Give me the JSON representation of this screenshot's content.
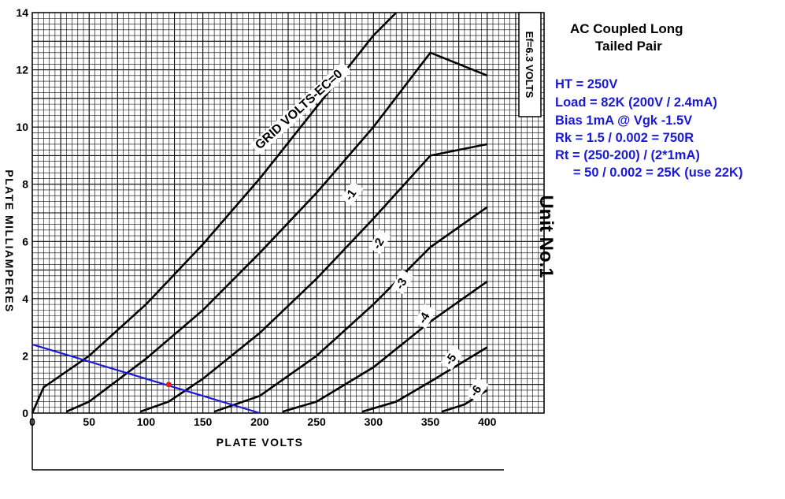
{
  "chart_data": {
    "type": "line",
    "xlabel": "PLATE VOLTS",
    "ylabel": "PLATE MILLIAMPERES",
    "heater_note": "Ef=6.3 VOLTS",
    "xlim": [
      0,
      450
    ],
    "ylim": [
      0,
      14
    ],
    "x_ticks": [
      "0",
      "50",
      "100",
      "150",
      "200",
      "250",
      "300",
      "350",
      "400"
    ],
    "y_ticks": [
      "0",
      "2",
      "4",
      "6",
      "8",
      "10",
      "12",
      "14"
    ],
    "grid": true,
    "series": [
      {
        "name": "GRID VOLTS-EC=0",
        "points": [
          [
            0,
            0
          ],
          [
            10,
            0.9
          ],
          [
            50,
            2.0
          ],
          [
            100,
            3.8
          ],
          [
            150,
            5.9
          ],
          [
            200,
            8.2
          ],
          [
            250,
            10.7
          ],
          [
            300,
            13.2
          ],
          [
            320,
            14.0
          ]
        ]
      },
      {
        "name": "-1",
        "points": [
          [
            30,
            0.05
          ],
          [
            50,
            0.4
          ],
          [
            100,
            1.9
          ],
          [
            150,
            3.6
          ],
          [
            200,
            5.6
          ],
          [
            250,
            7.7
          ],
          [
            300,
            10.0
          ],
          [
            350,
            12.6
          ],
          [
            400,
            11.8
          ]
        ]
      },
      {
        "name": "-2",
        "points": [
          [
            95,
            0.05
          ],
          [
            120,
            0.4
          ],
          [
            150,
            1.2
          ],
          [
            200,
            2.8
          ],
          [
            250,
            4.7
          ],
          [
            300,
            6.8
          ],
          [
            350,
            9.0
          ],
          [
            400,
            9.4
          ]
        ]
      },
      {
        "name": "-3",
        "points": [
          [
            160,
            0.05
          ],
          [
            200,
            0.6
          ],
          [
            250,
            2.0
          ],
          [
            300,
            3.8
          ],
          [
            350,
            5.8
          ],
          [
            400,
            7.2
          ]
        ]
      },
      {
        "name": "-4",
        "points": [
          [
            220,
            0.05
          ],
          [
            250,
            0.4
          ],
          [
            300,
            1.6
          ],
          [
            350,
            3.2
          ],
          [
            400,
            4.6
          ]
        ]
      },
      {
        "name": "-5",
        "points": [
          [
            290,
            0.05
          ],
          [
            320,
            0.4
          ],
          [
            350,
            1.1
          ],
          [
            400,
            2.3
          ]
        ]
      },
      {
        "name": "-6",
        "points": [
          [
            360,
            0.05
          ],
          [
            380,
            0.3
          ],
          [
            400,
            0.8
          ]
        ]
      }
    ],
    "curve_labels": [
      "GRID VOLTS-EC=0",
      "-1",
      "-2",
      "-3",
      "-4",
      "-5",
      "-6"
    ],
    "load_line": {
      "points": [
        [
          0,
          2.4
        ],
        [
          200,
          0
        ]
      ],
      "color": "#1a1ad6"
    },
    "operating_point": {
      "x": 120,
      "y": 1.0,
      "color": "#e02020"
    }
  },
  "annotations": {
    "title_line1": "AC Coupled Long",
    "title_line2": "Tailed Pair",
    "lines": [
      "HT = 250V",
      "Load = 82K (200V / 2.4mA)",
      "Bias 1mA @ Vgk -1.5V",
      "Rk = 1.5 / 0.002 = 750R",
      "Rt = (250-200) / (2*1mA)",
      "     = 50 / 0.002 = 25K (use 22K)"
    ],
    "unit": "Unit No.1"
  }
}
